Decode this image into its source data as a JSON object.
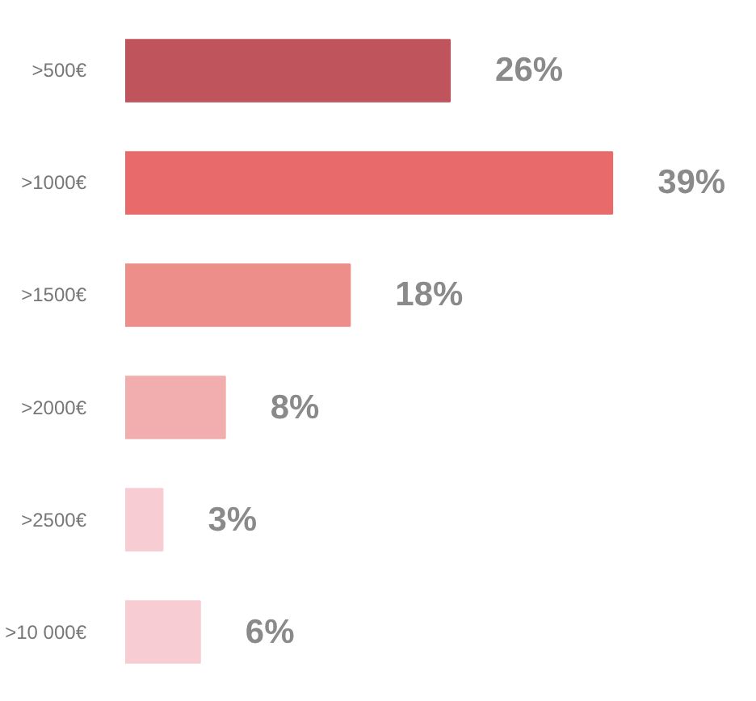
{
  "chart_data": {
    "type": "bar",
    "orientation": "horizontal",
    "categories": [
      ">500€",
      ">1000€",
      ">1500€",
      ">2000€",
      ">2500€",
      ">10 000€"
    ],
    "values": [
      26,
      39,
      18,
      8,
      3,
      6
    ],
    "colors": [
      "#c0545c",
      "#e86a6a",
      "#ee8e8b",
      "#f2aeae",
      "#f7cdd3",
      "#f7cdd3"
    ],
    "value_labels": [
      "26%",
      "39%",
      "18%",
      "8%",
      "3%",
      "6%"
    ]
  }
}
